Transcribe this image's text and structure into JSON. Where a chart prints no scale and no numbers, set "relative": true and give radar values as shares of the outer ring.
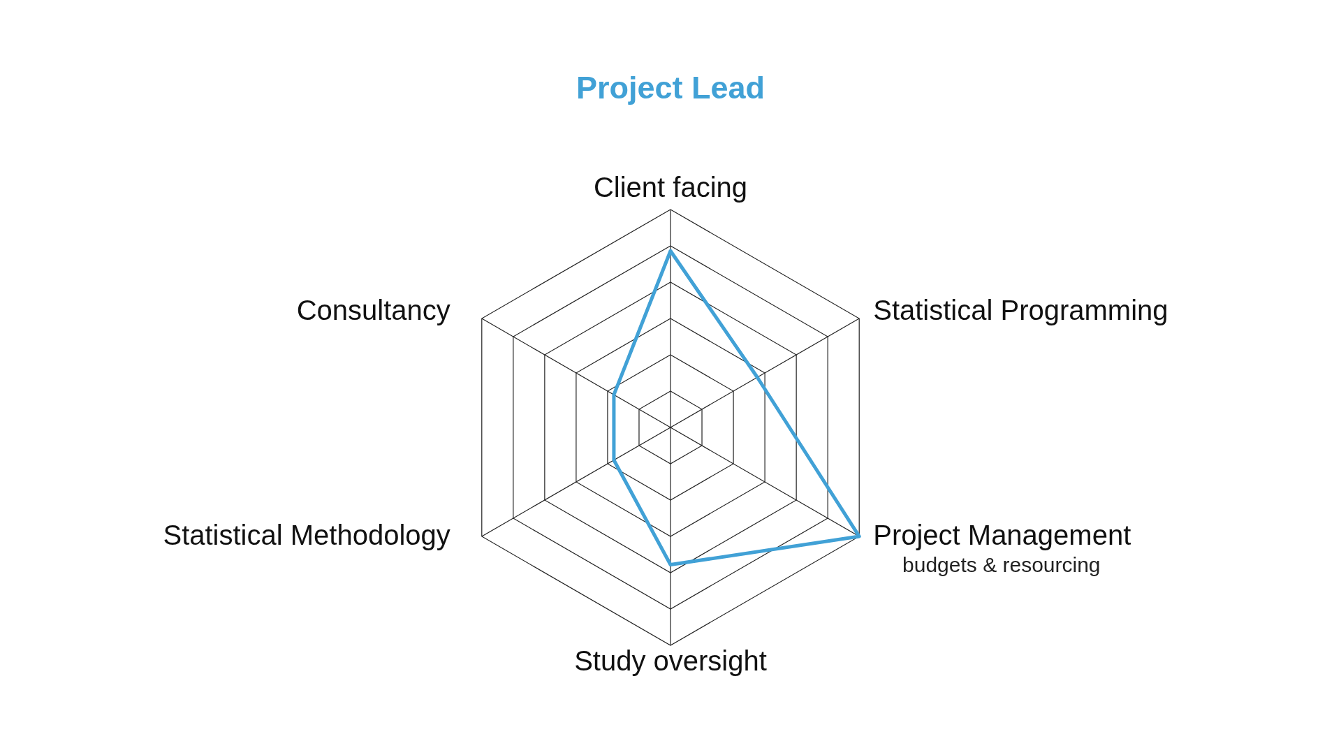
{
  "chart_data": {
    "type": "radar",
    "title": "Project Lead",
    "categories": [
      "Client facing",
      "Statistical Programming",
      "Project Management",
      "Study oversight",
      "Statistical Methodology",
      "Consultancy"
    ],
    "relative": true,
    "series": [
      {
        "color": "#41a1d6",
        "values": [
          0.81,
          0.46,
          1,
          0.63,
          0.3,
          0.3
        ]
      }
    ],
    "grid": true,
    "annotations": [
      {
        "text": "budgets & resourcing",
        "x": "Project Management"
      }
    ]
  }
}
